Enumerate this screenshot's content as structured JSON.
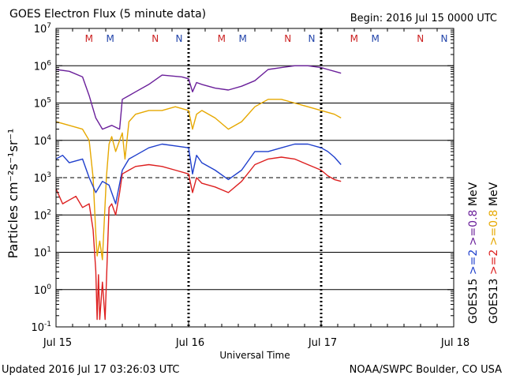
{
  "chart_data": {
    "type": "line",
    "title": "GOES Electron Flux (5 minute data)",
    "begin": "Begin: 2016 Jul 15 0000 UTC",
    "xlabel": "Universal Time",
    "ylabel": "Particles cm⁻²s⁻¹sr⁻¹",
    "x_unit": "days since 2016 Jul 15 00:00 UTC",
    "xlim": [
      0,
      3
    ],
    "ylim_log10": [
      -1,
      7
    ],
    "x_ticks": [
      {
        "x": 0,
        "label": "Jul 15"
      },
      {
        "x": 1,
        "label": "Jul 16"
      },
      {
        "x": 2,
        "label": "Jul 17"
      },
      {
        "x": 3,
        "label": "Jul 18"
      }
    ],
    "y_tick_exponents": [
      "-1",
      "0",
      "1",
      "2",
      "3",
      "4",
      "5",
      "6",
      "7"
    ],
    "threshold_log10": 3,
    "markers": [
      {
        "x": 0.32,
        "label": "M",
        "color": "#cc2222"
      },
      {
        "x": 0.48,
        "label": "M",
        "color": "#2244aa"
      },
      {
        "x": 0.82,
        "label": "N",
        "color": "#cc2222"
      },
      {
        "x": 1.0,
        "label": "N",
        "color": "#2244aa"
      },
      {
        "x": 1.32,
        "label": "M",
        "color": "#cc2222"
      },
      {
        "x": 1.48,
        "label": "M",
        "color": "#2244aa"
      },
      {
        "x": 1.82,
        "label": "N",
        "color": "#cc2222"
      },
      {
        "x": 2.0,
        "label": "N",
        "color": "#2244aa"
      },
      {
        "x": 2.32,
        "label": "M",
        "color": "#cc2222"
      },
      {
        "x": 2.48,
        "label": "M",
        "color": "#2244aa"
      },
      {
        "x": 2.82,
        "label": "N",
        "color": "#cc2222"
      },
      {
        "x": 3.0,
        "label": "N",
        "color": "#2244aa"
      }
    ],
    "legend": [
      {
        "sat": "GOES15",
        "energy": ">=2",
        "unit": "MeV",
        "color": "#1f3fcc"
      },
      {
        "sat": "GOES15",
        "energy": ">=0.8",
        "unit": "MeV",
        "color": "#6a1f9a"
      },
      {
        "sat": "GOES13",
        "energy": ">=2",
        "unit": "MeV",
        "color": "#dd1f1f"
      },
      {
        "sat": "GOES13",
        "energy": ">=0.8",
        "unit": "MeV",
        "color": "#e6a800"
      }
    ],
    "series": [
      {
        "name": "GOES15 >=0.8 MeV",
        "color": "#6a1f9a",
        "x": [
          0,
          0.1,
          0.2,
          0.25,
          0.3,
          0.35,
          0.42,
          0.48,
          0.5,
          0.55,
          0.6,
          0.7,
          0.8,
          0.95,
          1.0,
          1.03,
          1.06,
          1.1,
          1.2,
          1.3,
          1.4,
          1.5,
          1.6,
          1.7,
          1.8,
          1.9,
          2.0,
          2.05,
          2.1,
          2.15
        ],
        "y": [
          5.9,
          5.85,
          5.7,
          5.2,
          4.6,
          4.3,
          4.4,
          4.3,
          5.1,
          5.2,
          5.3,
          5.5,
          5.75,
          5.7,
          5.65,
          5.3,
          5.55,
          5.5,
          5.4,
          5.35,
          5.45,
          5.6,
          5.9,
          5.95,
          6.0,
          6.0,
          5.95,
          5.9,
          5.85,
          5.8
        ]
      },
      {
        "name": "GOES13 >=0.8 MeV",
        "color": "#e6a800",
        "x": [
          0,
          0.1,
          0.2,
          0.25,
          0.28,
          0.3,
          0.31,
          0.33,
          0.35,
          0.38,
          0.4,
          0.42,
          0.45,
          0.5,
          0.52,
          0.55,
          0.6,
          0.7,
          0.8,
          0.9,
          1.0,
          1.03,
          1.06,
          1.1,
          1.2,
          1.3,
          1.4,
          1.5,
          1.6,
          1.7,
          1.8,
          1.9,
          2.0,
          2.1,
          2.15
        ],
        "y": [
          4.5,
          4.4,
          4.3,
          4.0,
          3.0,
          1.5,
          0.9,
          1.3,
          0.8,
          3.0,
          3.9,
          4.1,
          3.7,
          4.2,
          3.5,
          4.5,
          4.7,
          4.8,
          4.8,
          4.9,
          4.8,
          4.3,
          4.7,
          4.8,
          4.6,
          4.3,
          4.5,
          4.9,
          5.1,
          5.1,
          5.0,
          4.9,
          4.8,
          4.7,
          4.6
        ]
      },
      {
        "name": "GOES15 >=2 MeV",
        "color": "#1f3fcc",
        "x": [
          0,
          0.05,
          0.1,
          0.2,
          0.25,
          0.3,
          0.35,
          0.4,
          0.45,
          0.5,
          0.55,
          0.6,
          0.7,
          0.8,
          0.9,
          1.0,
          1.03,
          1.06,
          1.1,
          1.2,
          1.3,
          1.4,
          1.5,
          1.6,
          1.7,
          1.8,
          1.9,
          2.0,
          2.05,
          2.1,
          2.15
        ],
        "y": [
          3.5,
          3.6,
          3.4,
          3.5,
          3.0,
          2.6,
          2.9,
          2.8,
          2.3,
          3.2,
          3.5,
          3.6,
          3.8,
          3.9,
          3.85,
          3.8,
          3.1,
          3.6,
          3.4,
          3.2,
          2.95,
          3.2,
          3.7,
          3.7,
          3.8,
          3.9,
          3.9,
          3.8,
          3.7,
          3.55,
          3.35
        ]
      },
      {
        "name": "GOES13 >=2 MeV",
        "color": "#dd1f1f",
        "x": [
          0,
          0.05,
          0.1,
          0.15,
          0.2,
          0.25,
          0.28,
          0.3,
          0.31,
          0.32,
          0.33,
          0.35,
          0.37,
          0.39,
          0.4,
          0.42,
          0.45,
          0.48,
          0.5,
          0.55,
          0.6,
          0.7,
          0.8,
          0.9,
          1.0,
          1.03,
          1.06,
          1.1,
          1.2,
          1.3,
          1.4,
          1.5,
          1.6,
          1.7,
          1.8,
          1.9,
          2.0,
          2.05,
          2.1,
          2.15
        ],
        "y": [
          2.7,
          2.3,
          2.4,
          2.5,
          2.2,
          2.3,
          1.6,
          0.5,
          -0.8,
          0.4,
          -0.8,
          0.2,
          -0.8,
          1.2,
          2.2,
          2.3,
          2.0,
          2.6,
          3.1,
          3.2,
          3.3,
          3.35,
          3.3,
          3.2,
          3.1,
          2.6,
          3.0,
          2.85,
          2.75,
          2.6,
          2.9,
          3.35,
          3.5,
          3.55,
          3.5,
          3.35,
          3.2,
          3.05,
          2.95,
          2.9
        ]
      }
    ]
  },
  "footer": {
    "updated": "Updated 2016 Jul 17 03:26:03 UTC",
    "source": "NOAA/SWPC Boulder, CO USA"
  }
}
